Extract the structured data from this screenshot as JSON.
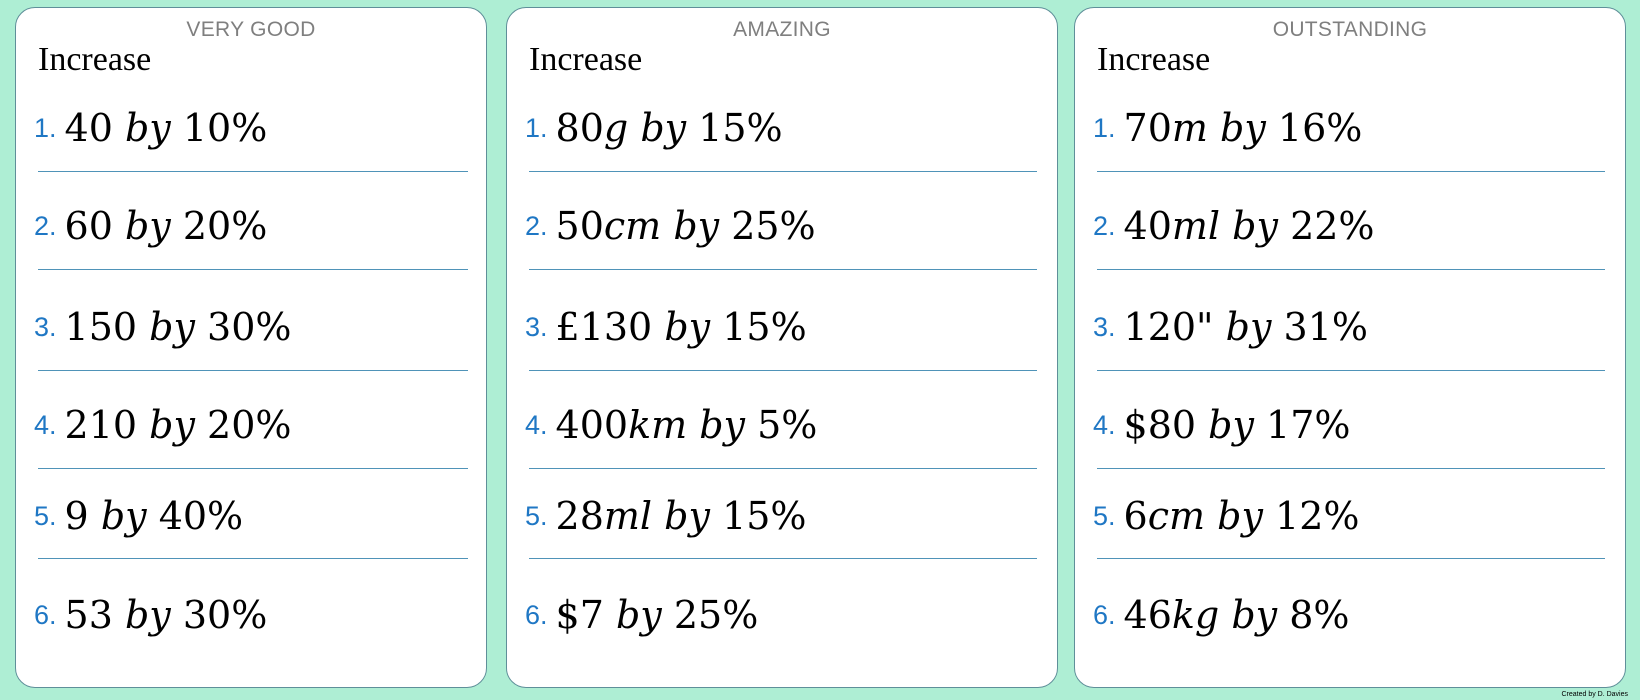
{
  "cards": [
    {
      "level": "VERY GOOD",
      "heading": "Increase",
      "questions": [
        {
          "n": "1.",
          "a": "40",
          "u": "",
          "p": "10%"
        },
        {
          "n": "2.",
          "a": "60",
          "u": "",
          "p": "20%"
        },
        {
          "n": "3.",
          "a": "150",
          "u": "",
          "p": "30%"
        },
        {
          "n": "4.",
          "a": "210",
          "u": "",
          "p": "20%"
        },
        {
          "n": "5.",
          "a": "9",
          "u": "",
          "p": "40%"
        },
        {
          "n": "6.",
          "a": "53",
          "u": "",
          "p": "30%"
        }
      ]
    },
    {
      "level": "AMAZING",
      "heading": "Increase",
      "questions": [
        {
          "n": "1.",
          "a": "80",
          "u": "g",
          "p": "15%"
        },
        {
          "n": "2.",
          "a": "50",
          "u": "cm",
          "p": "25%"
        },
        {
          "n": "3.",
          "a": "£130",
          "u": "",
          "p": "15%"
        },
        {
          "n": "4.",
          "a": "400",
          "u": "km",
          "p": "5%"
        },
        {
          "n": "5.",
          "a": "28",
          "u": "ml",
          "p": "15%"
        },
        {
          "n": "6.",
          "a": "$7",
          "u": "",
          "p": "25%"
        }
      ]
    },
    {
      "level": "OUTSTANDING",
      "heading": "Increase",
      "questions": [
        {
          "n": "1.",
          "a": "70",
          "u": "m",
          "p": "16%"
        },
        {
          "n": "2.",
          "a": "40",
          "u": "ml",
          "p": "22%"
        },
        {
          "n": "3.",
          "a": "120\"",
          "u": "",
          "p": "31%"
        },
        {
          "n": "4.",
          "a": "$80",
          "u": "",
          "p": "17%"
        },
        {
          "n": "5.",
          "a": "6",
          "u": "cm",
          "p": "12%"
        },
        {
          "n": "6.",
          "a": "46",
          "u": "kg",
          "p": "8%"
        }
      ]
    }
  ],
  "by_word": "by",
  "credit": "Created by D. Davies"
}
